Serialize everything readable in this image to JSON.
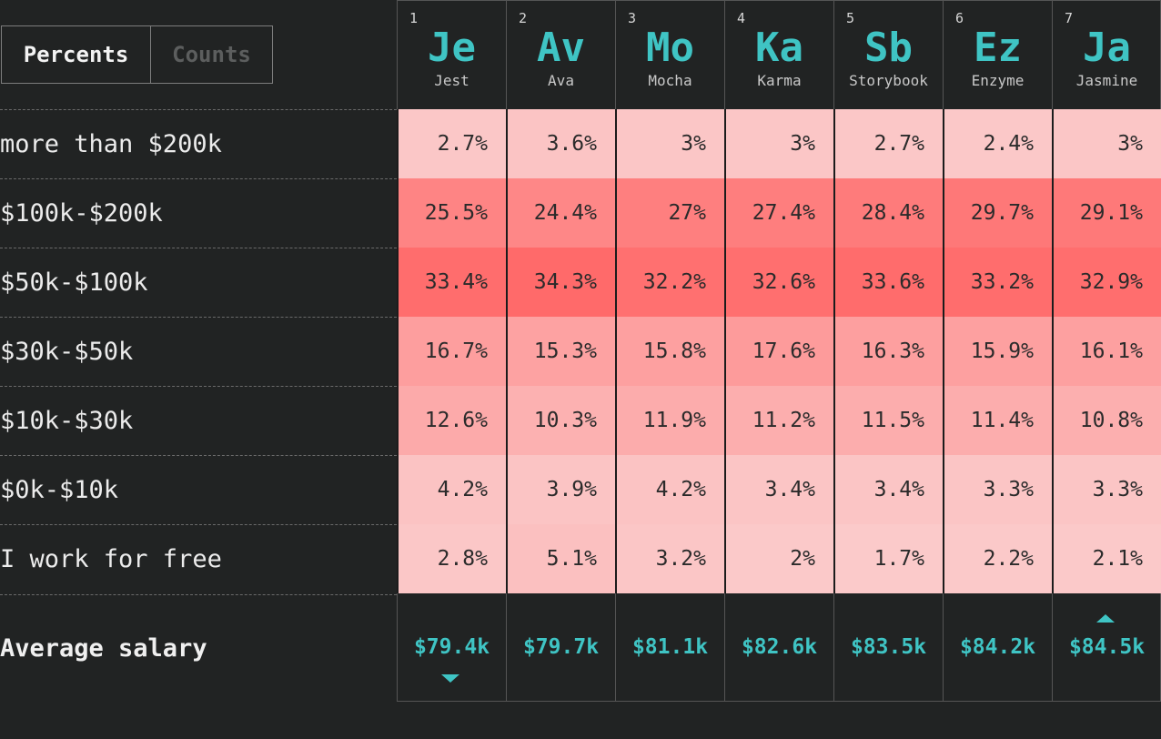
{
  "toggle": {
    "percents_label": "Percents",
    "counts_label": "Counts",
    "selected": "Percents"
  },
  "colors": {
    "accent": "#3fc4c4",
    "background": "#212323",
    "heat_low": "#fbcaca",
    "heat_high": "#ff6a6a"
  },
  "chart_data": {
    "type": "heatmap",
    "columns": [
      {
        "rank": "1",
        "abbr": "Je",
        "name": "Jest"
      },
      {
        "rank": "2",
        "abbr": "Av",
        "name": "Ava"
      },
      {
        "rank": "3",
        "abbr": "Mo",
        "name": "Mocha"
      },
      {
        "rank": "4",
        "abbr": "Ka",
        "name": "Karma"
      },
      {
        "rank": "5",
        "abbr": "Sb",
        "name": "Storybook"
      },
      {
        "rank": "6",
        "abbr": "Ez",
        "name": "Enzyme"
      },
      {
        "rank": "7",
        "abbr": "Ja",
        "name": "Jasmine"
      }
    ],
    "rows": [
      {
        "label": "more than $200k",
        "values": [
          "2.7%",
          "3.6%",
          "3%",
          "3%",
          "2.7%",
          "2.4%",
          "3%"
        ],
        "numeric": [
          2.7,
          3.6,
          3,
          3,
          2.7,
          2.4,
          3
        ]
      },
      {
        "label": "$100k-$200k",
        "values": [
          "25.5%",
          "24.4%",
          "27%",
          "27.4%",
          "28.4%",
          "29.7%",
          "29.1%"
        ],
        "numeric": [
          25.5,
          24.4,
          27,
          27.4,
          28.4,
          29.7,
          29.1
        ]
      },
      {
        "label": "$50k-$100k",
        "values": [
          "33.4%",
          "34.3%",
          "32.2%",
          "32.6%",
          "33.6%",
          "33.2%",
          "32.9%"
        ],
        "numeric": [
          33.4,
          34.3,
          32.2,
          32.6,
          33.6,
          33.2,
          32.9
        ]
      },
      {
        "label": "$30k-$50k",
        "values": [
          "16.7%",
          "15.3%",
          "15.8%",
          "17.6%",
          "16.3%",
          "15.9%",
          "16.1%"
        ],
        "numeric": [
          16.7,
          15.3,
          15.8,
          17.6,
          16.3,
          15.9,
          16.1
        ]
      },
      {
        "label": "$10k-$30k",
        "values": [
          "12.6%",
          "10.3%",
          "11.9%",
          "11.2%",
          "11.5%",
          "11.4%",
          "10.8%"
        ],
        "numeric": [
          12.6,
          10.3,
          11.9,
          11.2,
          11.5,
          11.4,
          10.8
        ]
      },
      {
        "label": "$0k-$10k",
        "values": [
          "4.2%",
          "3.9%",
          "4.2%",
          "3.4%",
          "3.4%",
          "3.3%",
          "3.3%"
        ],
        "numeric": [
          4.2,
          3.9,
          4.2,
          3.4,
          3.4,
          3.3,
          3.3
        ]
      },
      {
        "label": "I work for free",
        "values": [
          "2.8%",
          "5.1%",
          "3.2%",
          "2%",
          "1.7%",
          "2.2%",
          "2.1%"
        ],
        "numeric": [
          2.8,
          5.1,
          3.2,
          2,
          1.7,
          2.2,
          2.1
        ]
      }
    ],
    "summary": {
      "label": "Average salary",
      "values": [
        "$79.4k",
        "$79.7k",
        "$81.1k",
        "$82.6k",
        "$83.5k",
        "$84.2k",
        "$84.5k"
      ],
      "min_index": 0,
      "max_index": 6
    }
  }
}
